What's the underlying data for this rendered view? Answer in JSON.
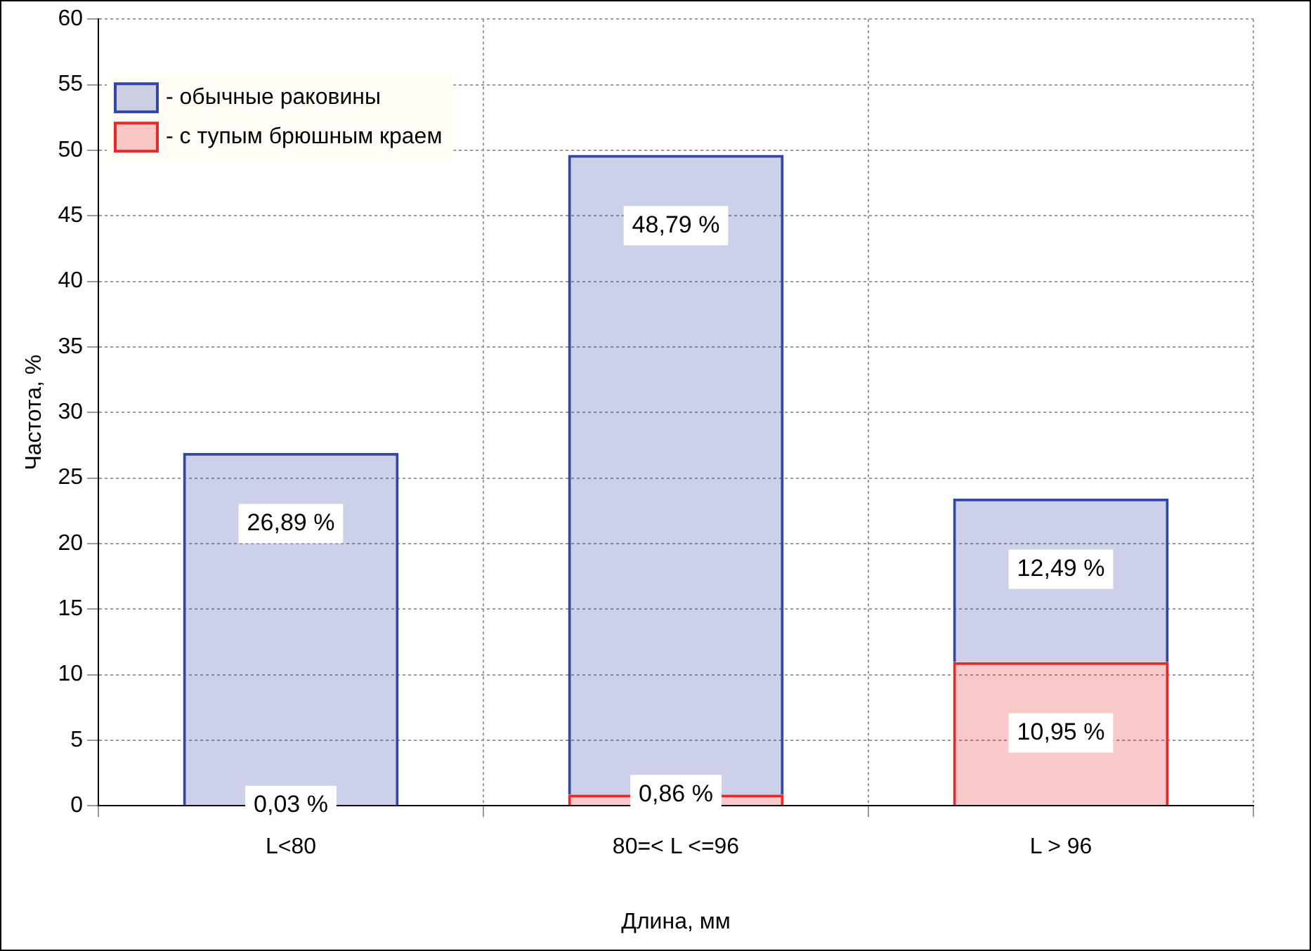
{
  "chart_data": {
    "type": "bar",
    "stacked": true,
    "xlabel": "Длина, мм",
    "ylabel": "Частота, %",
    "categories": [
      "L<80",
      "80=< L <=96",
      "L > 96"
    ],
    "series": [
      {
        "name": "- с тупым брюшным краем",
        "color": "#e8282a",
        "values": [
          0.03,
          0.86,
          10.95
        ],
        "value_labels": [
          "0,03 %",
          "0,86 %",
          "10,95 %"
        ]
      },
      {
        "name": "- обычные раковины",
        "color": "#3345a6",
        "values": [
          26.89,
          48.79,
          12.49
        ],
        "value_labels": [
          "26,89 %",
          "48,79 %",
          "12,49 %"
        ]
      }
    ],
    "ylim": [
      0,
      60
    ],
    "yticks": [
      0,
      5,
      10,
      15,
      20,
      25,
      30,
      35,
      40,
      45,
      50,
      55,
      60
    ],
    "grid": true,
    "legend": "top left"
  }
}
